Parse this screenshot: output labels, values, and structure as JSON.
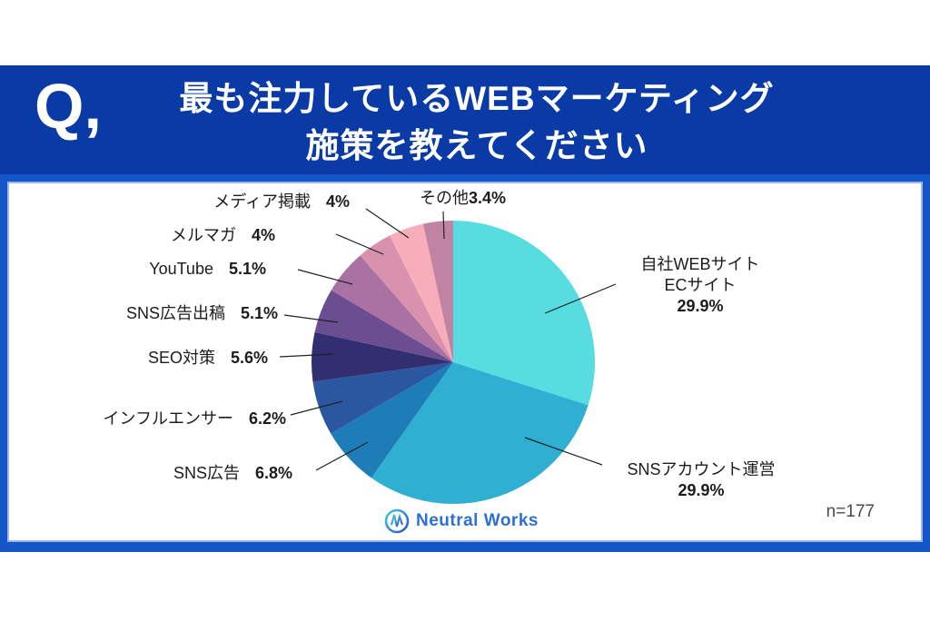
{
  "header": {
    "q_label": "Q,",
    "title_line1": "最も注力しているWEBマーケティング",
    "title_line2": "施策を教えてください"
  },
  "footer": {
    "sample_size_label": "n=177",
    "logo_text": "Neutral Works"
  },
  "colors": {
    "header_band": "#0a3aa6",
    "frame": "#1456c8",
    "label_text": "#1c1c1c",
    "leader_line": "#222222",
    "logo_blue": "#2d6fd8"
  },
  "chart_data": {
    "type": "pie",
    "title": "最も注力しているWEBマーケティング施策を教えてください",
    "unit": "%",
    "sample_size": 177,
    "direction": "clockwise",
    "start_angle_deg": 0,
    "legend_position": "none",
    "slices": [
      {
        "key": "own-website-ec",
        "label": "自社WEBサイト",
        "label_lines": [
          "自社WEBサイト",
          "ECサイト"
        ],
        "value": 29.9,
        "pct_text": "29.9%",
        "color": "#57dce2"
      },
      {
        "key": "sns-account",
        "label": "SNSアカウント運営",
        "value": 29.9,
        "pct_text": "29.9%",
        "color": "#30afd2"
      },
      {
        "key": "sns-ad",
        "label": "SNS広告",
        "value": 6.8,
        "pct_text": "6.8%",
        "color": "#1e7db6"
      },
      {
        "key": "influencer",
        "label": "インフルエンサー",
        "value": 6.2,
        "pct_text": "6.2%",
        "color": "#2b57a0"
      },
      {
        "key": "seo",
        "label": "SEO対策",
        "value": 5.6,
        "pct_text": "5.6%",
        "color": "#322f70"
      },
      {
        "key": "sns-ad-placement",
        "label": "SNS広告出稿",
        "value": 5.1,
        "pct_text": "5.1%",
        "color": "#6b4d92"
      },
      {
        "key": "youtube",
        "label": "YouTube",
        "value": 5.1,
        "pct_text": "5.1%",
        "color": "#aa71a2"
      },
      {
        "key": "mailmag",
        "label": "メルマガ",
        "value": 4,
        "pct_text": "4%",
        "color": "#d992ae"
      },
      {
        "key": "media",
        "label": "メディア掲載",
        "value": 4,
        "pct_text": "4%",
        "color": "#f8adbb"
      },
      {
        "key": "other",
        "label": "その他",
        "value": 3.4,
        "pct_text": "3.4%",
        "color": "#c083a4"
      }
    ]
  }
}
